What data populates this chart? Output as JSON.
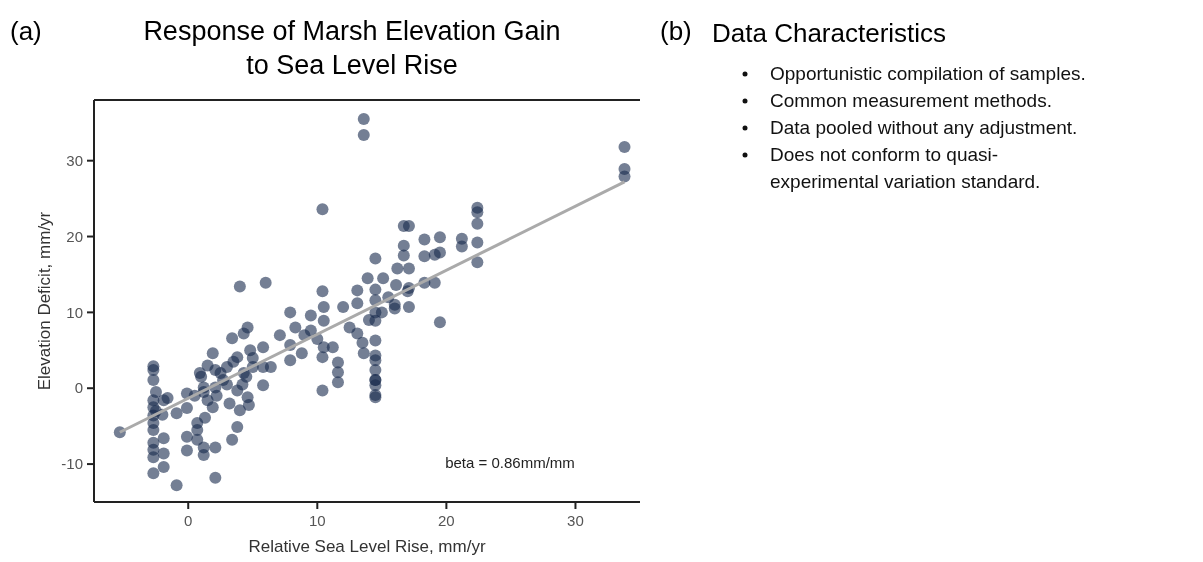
{
  "chart_data": [
    {
      "type": "scatter",
      "title": "Response of Marsh Elevation Gain to Sea Level Rise",
      "xlabel": "Relative Sea Level Rise, mm/yr",
      "ylabel": "Elevation Deficit, mm/yr",
      "xlim": [
        -7.3,
        35
      ],
      "ylim": [
        -15,
        38
      ],
      "xticks": [
        0,
        10,
        20,
        30
      ],
      "yticks": [
        -10,
        0,
        10,
        20,
        30
      ],
      "marker": "circle",
      "annotations": [
        "(a)",
        "beta = 0.86mm/mm"
      ],
      "series": [
        {
          "type": "scatter",
          "color": "#172a4d",
          "x": [
            -5.3,
            -2.7,
            -2.7,
            -2.7,
            -2.7,
            -2.7,
            -2.7,
            -2.7,
            -2.7,
            -2.7,
            -2.7,
            -2.7,
            -2.7,
            -1.9,
            -1.9,
            -1.9,
            -1.9,
            -1.6,
            -0.9,
            -0.9,
            -0.1,
            -0.1,
            -0.1,
            -0.1,
            0.7,
            0.7,
            0.7,
            1.2,
            1.2,
            1.3,
            0.9,
            1.2,
            1.5,
            1.9,
            1.9,
            2.1,
            2.1,
            2.1,
            2.1,
            2.7,
            3.0,
            3.4,
            3.4,
            3.8,
            4.0,
            3.8,
            3.8,
            4.3,
            4.6,
            4.3,
            4.6,
            4.7,
            4.8,
            5.0,
            5.8,
            5.8,
            5.8,
            6.4,
            7.1,
            7.9,
            7.9,
            7.9,
            8.3,
            8.8,
            9.5,
            9.5,
            10.4,
            10.4,
            10.5,
            10.5,
            10.5,
            11.2,
            11.6,
            11.6,
            11.6,
            12.0,
            13.1,
            13.1,
            13.6,
            13.1,
            14.5,
            14.5,
            14.5,
            14.5,
            14.5,
            14.5,
            14.5,
            14.5,
            14.5,
            14.5,
            14.5,
            19.5,
            17.1,
            16.0,
            13.6,
            13.6,
            14.5,
            13.9,
            15.1,
            16.7,
            17.1,
            16.7,
            16.7,
            16.2,
            17.1,
            18.3,
            18.3,
            19.5,
            19.5,
            19.1,
            21.2,
            21.2,
            22.4,
            22.4,
            22.4,
            22.4,
            22.4,
            18.3,
            19.1,
            16.1,
            17.1,
            33.8,
            33.8,
            33.8,
            10.4,
            4.0,
            6.0,
            10.4,
            1.0,
            1.5,
            2.5,
            3.0,
            3.5,
            4.5,
            5.0,
            1.2,
            2.2,
            3.2,
            4.2,
            0.5,
            13.5,
            14.0,
            12.5,
            10.0,
            9.0,
            14.5,
            15.0,
            16.0,
            17.0,
            15.5,
            14.5,
            -2.5,
            -2.5,
            -2.0
          ],
          "values": [
            -5.8,
            2.9,
            2.4,
            1.1,
            -1.6,
            -2.5,
            -3.6,
            -4.6,
            -5.5,
            -7.2,
            -8.1,
            -9.1,
            -11.2,
            -1.6,
            -6.6,
            -8.6,
            -10.4,
            -1.3,
            -12.8,
            -3.3,
            -0.7,
            -6.4,
            -8.2,
            -2.6,
            -4.6,
            -5.5,
            -6.8,
            -7.8,
            -8.8,
            -3.9,
            2.0,
            0.1,
            -1.6,
            4.6,
            -2.5,
            -7.8,
            -11.8,
            2.4,
            0.1,
            1.1,
            2.8,
            6.6,
            -6.8,
            -5.1,
            -2.9,
            4.1,
            -0.3,
            7.2,
            8.0,
            2.0,
            -1.2,
            -2.2,
            5.0,
            2.8,
            5.4,
            2.8,
            0.4,
            2.8,
            7.0,
            10.0,
            3.7,
            5.7,
            8.0,
            4.6,
            9.6,
            7.6,
            -0.3,
            4.1,
            8.9,
            10.7,
            5.4,
            5.4,
            3.4,
            2.1,
            0.8,
            10.7,
            12.9,
            7.2,
            4.6,
            11.2,
            11.6,
            8.9,
            6.3,
            4.3,
            2.4,
            1.1,
            0.4,
            -0.9,
            3.7,
            -1.2,
            1.1,
            8.7,
            10.7,
            10.5,
            35.5,
            33.4,
            17.1,
            14.5,
            14.5,
            21.4,
            21.4,
            18.8,
            17.5,
            15.8,
            15.8,
            19.6,
            17.4,
            19.9,
            17.9,
            17.6,
            19.7,
            18.7,
            23.8,
            23.2,
            21.7,
            19.2,
            16.6,
            13.9,
            13.9,
            13.6,
            13.2,
            31.8,
            28.9,
            27.9,
            23.6,
            13.4,
            13.9,
            12.8,
            1.5,
            3.0,
            2.0,
            0.5,
            3.5,
            1.5,
            4.0,
            -0.5,
            -1.0,
            -2.0,
            0.5,
            -1.0,
            6.0,
            9.0,
            8.0,
            6.5,
            7.0,
            13.0,
            10.0,
            11.0,
            12.8,
            12.0,
            10.0,
            -0.5,
            -3.0,
            -3.5
          ]
        },
        {
          "type": "line",
          "marker": "none",
          "color": "#aaaaaa",
          "x": [
            -5.3,
            33.8
          ],
          "values": [
            -5.8,
            27.2
          ]
        }
      ]
    },
    {
      "type": "other",
      "title": "Data Characteristics",
      "annotations": [
        "(b)",
        "Opportunistic compilation of samples.",
        "Common measurement methods.",
        "Data pooled without any adjustment.",
        "Does not conform to quasi-experimental variation standard."
      ]
    }
  ]
}
